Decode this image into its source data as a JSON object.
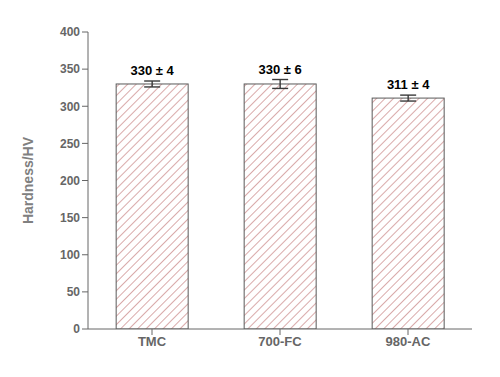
{
  "chart_data": {
    "type": "bar",
    "categories": [
      "TMC",
      "700-FC",
      "980-AC"
    ],
    "values": [
      330,
      330,
      311
    ],
    "errors": [
      4,
      6,
      4
    ],
    "value_labels": [
      "330 ± 4",
      "330 ± 6",
      "311 ± 4"
    ],
    "data_labels": true,
    "ylabel": "Hardness/HV",
    "ylim": [
      0,
      400
    ],
    "yticks": [
      0,
      50,
      100,
      150,
      200,
      250,
      300,
      350,
      400
    ],
    "color": "#c07070",
    "grid": false
  }
}
